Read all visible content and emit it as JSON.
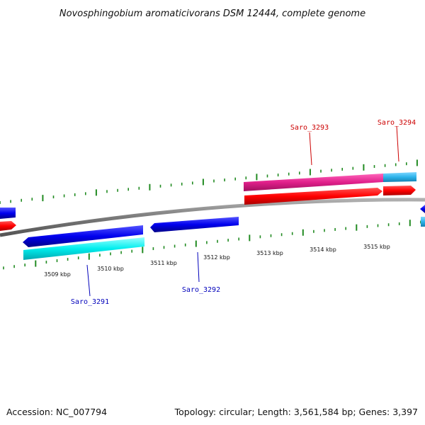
{
  "title": "Novosphingobium aromaticivorans DSM 12444, complete genome",
  "footer": {
    "accession": "Accession: NC_007794",
    "summary": "Topology: circular; Length: 3,561,584 bp; Genes: 3,397"
  },
  "scale_labels": [
    "3509 kbp",
    "3510 kbp",
    "3511 kbp",
    "3512 kbp",
    "3513 kbp",
    "3514 kbp",
    "3515 kbp"
  ],
  "gene_labels": [
    {
      "name": "Saro_3291",
      "strand": "minus"
    },
    {
      "name": "Saro_3292",
      "strand": "minus"
    },
    {
      "name": "Saro_3293",
      "strand": "plus"
    },
    {
      "name": "Saro_3294",
      "strand": "plus"
    }
  ],
  "colors": {
    "plus_strand": "#ff0000",
    "minus_strand": "#0000ff",
    "plus_cog": "#e8208c",
    "cog_cyan": "#29b5e8",
    "minus_cog": "#00e5ee",
    "backbone": "#808080",
    "ticks": "#228b22",
    "plus_label": "#cc0000",
    "minus_label": "#0000bb"
  }
}
